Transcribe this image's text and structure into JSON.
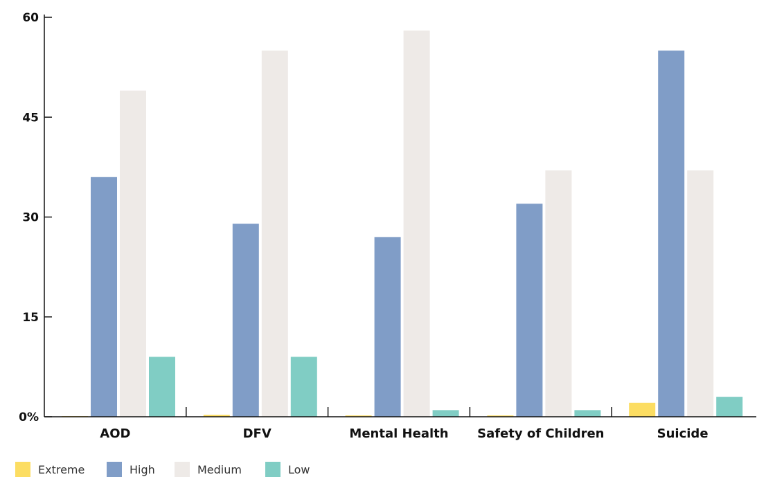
{
  "chart_data": {
    "type": "bar",
    "categories": [
      "AOD",
      "DFV",
      "Mental Health",
      "Safety of Children",
      "Suicide"
    ],
    "series": [
      {
        "name": "Extreme",
        "color": "#FCDD62",
        "values": [
          0.1,
          0.3,
          0.2,
          0.2,
          2.1
        ]
      },
      {
        "name": "High",
        "color": "#809DC7",
        "values": [
          36,
          29,
          27,
          32,
          55
        ]
      },
      {
        "name": "Medium",
        "color": "#EEEAE7",
        "values": [
          49,
          55,
          58,
          37,
          37
        ]
      },
      {
        "name": "Low",
        "color": "#80CDC4",
        "values": [
          9,
          9,
          1,
          1,
          3
        ]
      }
    ],
    "y_ticks": [
      "0%",
      "15",
      "30",
      "45",
      "60"
    ],
    "y_tick_values": [
      0,
      15,
      30,
      45,
      60
    ],
    "ylim": [
      0,
      60
    ],
    "grid": false,
    "legend_position": "bottom-left"
  }
}
